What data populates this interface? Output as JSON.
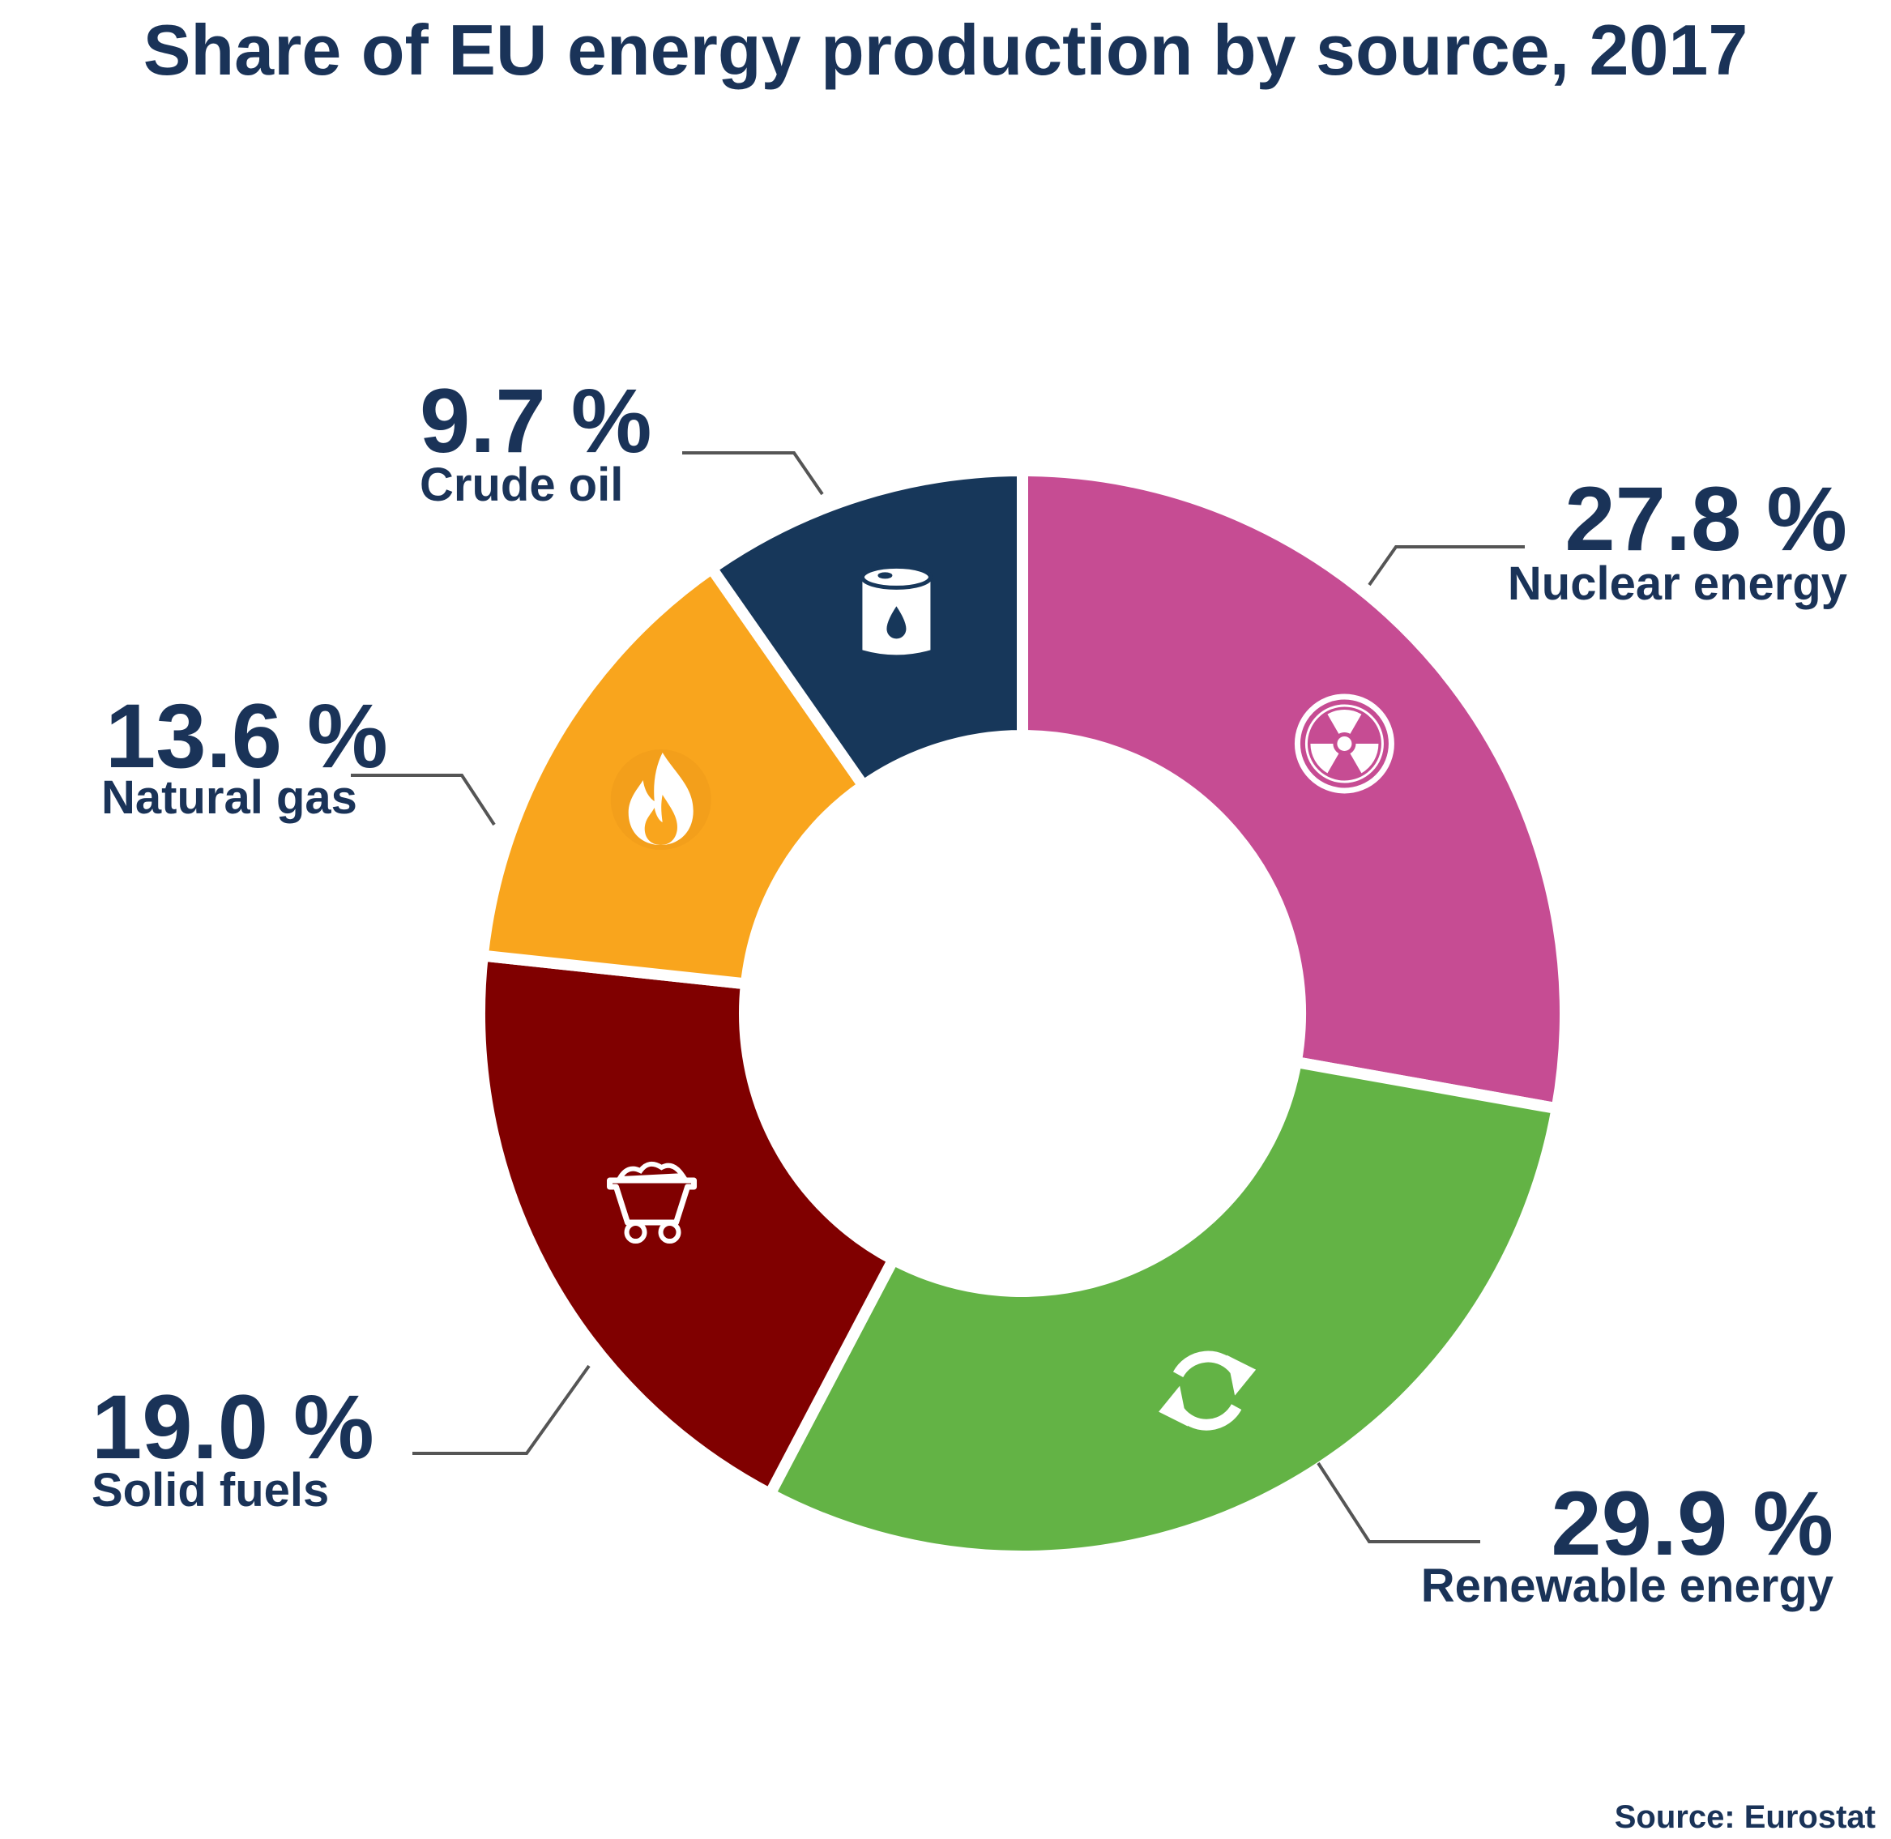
{
  "chart_data": {
    "type": "pie",
    "subtype": "donut",
    "title": "Share of EU energy production by source, 2017",
    "source": "Source: Eurostat",
    "unit": "%",
    "slices": [
      {
        "label": "Nuclear energy",
        "value": 27.8,
        "display": "27.8 %",
        "color": "#c64c93",
        "icon": "radiation-icon"
      },
      {
        "label": "Renewable energy",
        "value": 29.9,
        "display": "29.9 %",
        "color": "#63b345",
        "icon": "recycle-arrows-icon"
      },
      {
        "label": "Solid fuels",
        "value": 19.0,
        "display": "19.0 %",
        "color": "#800000",
        "icon": "coal-cart-icon"
      },
      {
        "label": "Natural gas",
        "value": 13.6,
        "display": "13.6 %",
        "color": "#f9a51d",
        "icon": "flame-icon"
      },
      {
        "label": "Crude oil",
        "value": 9.7,
        "display": "9.7 %",
        "color": "#17375a",
        "icon": "oil-barrel-icon"
      }
    ]
  }
}
